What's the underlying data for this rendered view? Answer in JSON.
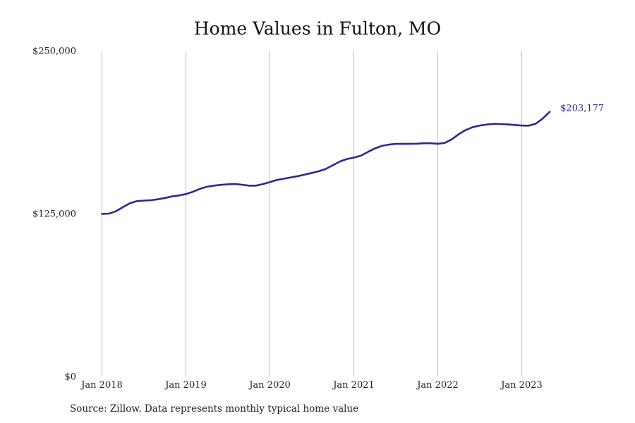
{
  "chart_data": {
    "type": "line",
    "title": "Home Values in Fulton, MO",
    "xlabel": "",
    "ylabel": "",
    "x_ticks": [
      "Jan 2018",
      "Jan 2019",
      "Jan 2020",
      "Jan 2021",
      "Jan 2022",
      "Jan 2023"
    ],
    "y_ticks": [
      "$0",
      "$125,000",
      "$250,000"
    ],
    "ylim": [
      0,
      250000
    ],
    "xlim": [
      "2018-01",
      "2023-12"
    ],
    "grid": "vertical at x ticks",
    "line_color": "#2b2a8c",
    "end_label": "$203,177",
    "series": [
      {
        "x": [
          "2018-01",
          "2018-02",
          "2018-03",
          "2018-04",
          "2018-05",
          "2018-06",
          "2018-07",
          "2018-08",
          "2018-09",
          "2018-10",
          "2018-11",
          "2018-12",
          "2019-01",
          "2019-02",
          "2019-03",
          "2019-04",
          "2019-05",
          "2019-06",
          "2019-07",
          "2019-08",
          "2019-09",
          "2019-10",
          "2019-11",
          "2019-12",
          "2020-01",
          "2020-02",
          "2020-03",
          "2020-04",
          "2020-05",
          "2020-06",
          "2020-07",
          "2020-08",
          "2020-09",
          "2020-10",
          "2020-11",
          "2020-12",
          "2021-01",
          "2021-02",
          "2021-03",
          "2021-04",
          "2021-05",
          "2021-06",
          "2021-07",
          "2021-08",
          "2021-09",
          "2021-10",
          "2021-11",
          "2021-12",
          "2022-01",
          "2022-02",
          "2022-03",
          "2022-04",
          "2022-05",
          "2022-06",
          "2022-07",
          "2022-08",
          "2022-09",
          "2022-10",
          "2022-11",
          "2022-12",
          "2023-01",
          "2023-02",
          "2023-03",
          "2023-04",
          "2023-05"
        ],
        "values": [
          124800,
          125000,
          126800,
          130000,
          133000,
          134600,
          135000,
          135300,
          136000,
          137000,
          138200,
          138900,
          140000,
          141800,
          144000,
          145600,
          146500,
          147100,
          147500,
          147800,
          147200,
          146500,
          146500,
          147700,
          149200,
          150800,
          151800,
          152800,
          153800,
          155000,
          156200,
          157500,
          159300,
          162100,
          165000,
          166900,
          168000,
          169400,
          172300,
          175000,
          177000,
          178000,
          178500,
          178500,
          178600,
          178700,
          179000,
          179000,
          178600,
          179300,
          182000,
          186000,
          189200,
          191400,
          192600,
          193400,
          193900,
          193700,
          193500,
          193000,
          192600,
          192500,
          194000,
          198000,
          203177
        ]
      }
    ]
  },
  "source_note": "Source: Zillow. Data represents monthly typical home value"
}
